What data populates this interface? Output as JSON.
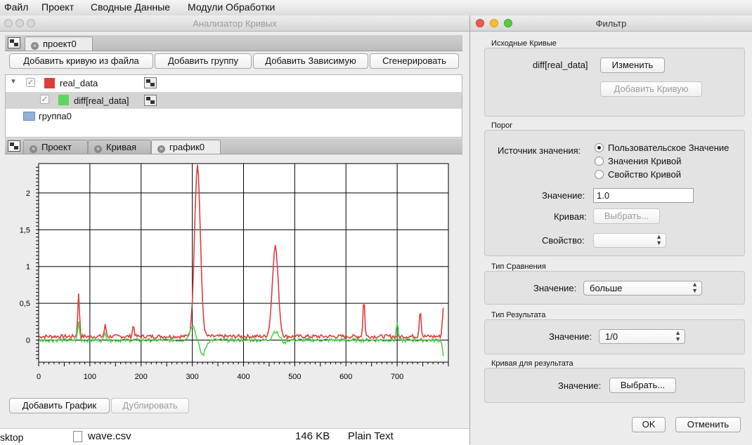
{
  "menubar": [
    "Файл",
    "Проект",
    "Сводные Данные",
    "Модули Обработки"
  ],
  "main": {
    "title": "Анализатор Кривых",
    "project_tab": "проект0",
    "buttons": [
      "Добавить кривую из файла",
      "Добавить группу",
      "Добавить Зависимую",
      "Сгенерировать"
    ],
    "tree": [
      {
        "label": "real_data",
        "color": "#e03c3c"
      },
      {
        "label": "diff[real_data]",
        "color": "#5cd65c"
      },
      {
        "label": "группа0"
      }
    ],
    "lower_tabs": [
      "Проект",
      "Кривая",
      "график0"
    ],
    "add_plot": "Добавить График",
    "duplicate": "Дублировать"
  },
  "chart_data": {
    "type": "line",
    "xlim": [
      0,
      800
    ],
    "ylim": [
      -0.3,
      2.4
    ],
    "x_ticks": [
      "0",
      "100",
      "200",
      "300",
      "400",
      "500",
      "600",
      "700"
    ],
    "y_ticks": [
      "0",
      "0,5",
      "1",
      "1,5",
      "2"
    ],
    "grid": true,
    "series": [
      {
        "color": "#e03c3c",
        "peaks": [
          [
            78,
            0.62
          ],
          [
            130,
            0.2
          ],
          [
            185,
            0.2
          ],
          [
            310,
            2.38
          ],
          [
            462,
            1.28
          ],
          [
            635,
            0.55
          ],
          [
            745,
            0.42
          ],
          [
            790,
            0.45
          ]
        ],
        "baseline": 0.05
      },
      {
        "color": "#4cd24c",
        "peaks": [
          [
            78,
            0.25
          ],
          [
            130,
            0.12
          ],
          [
            300,
            0.2
          ],
          [
            320,
            -0.2
          ],
          [
            462,
            0.12
          ],
          [
            480,
            -0.05
          ],
          [
            700,
            0.25
          ],
          [
            790,
            -0.2
          ]
        ],
        "baseline": 0.0
      }
    ]
  },
  "finder": {
    "name": "wave.csv",
    "size": "146 KB",
    "kind": "Plain Text",
    "left": "sktop"
  },
  "filter": {
    "title": "Фильтр",
    "source_group": "Исходные Кривые",
    "source_curve": "diff[real_data]",
    "change": "Изменить",
    "add_curve": "Добавить Кривую",
    "threshold_group": "Порог",
    "value_source_label": "Источник значения:",
    "radio_options": [
      "Пользовательское Значение",
      "Значения Кривой",
      "Свойство Кривой"
    ],
    "value_label": "Значение:",
    "value": "1.0",
    "curve_label": "Кривая:",
    "choose": "Выбрать...",
    "property_label": "Свойство:",
    "compare_group": "Тип Сравнения",
    "compare_value": "больше",
    "result_group": "Тип Результата",
    "result_value": "1/0",
    "result_curve_group": "Кривая для результата",
    "ok": "OK",
    "cancel": "Отменить"
  }
}
